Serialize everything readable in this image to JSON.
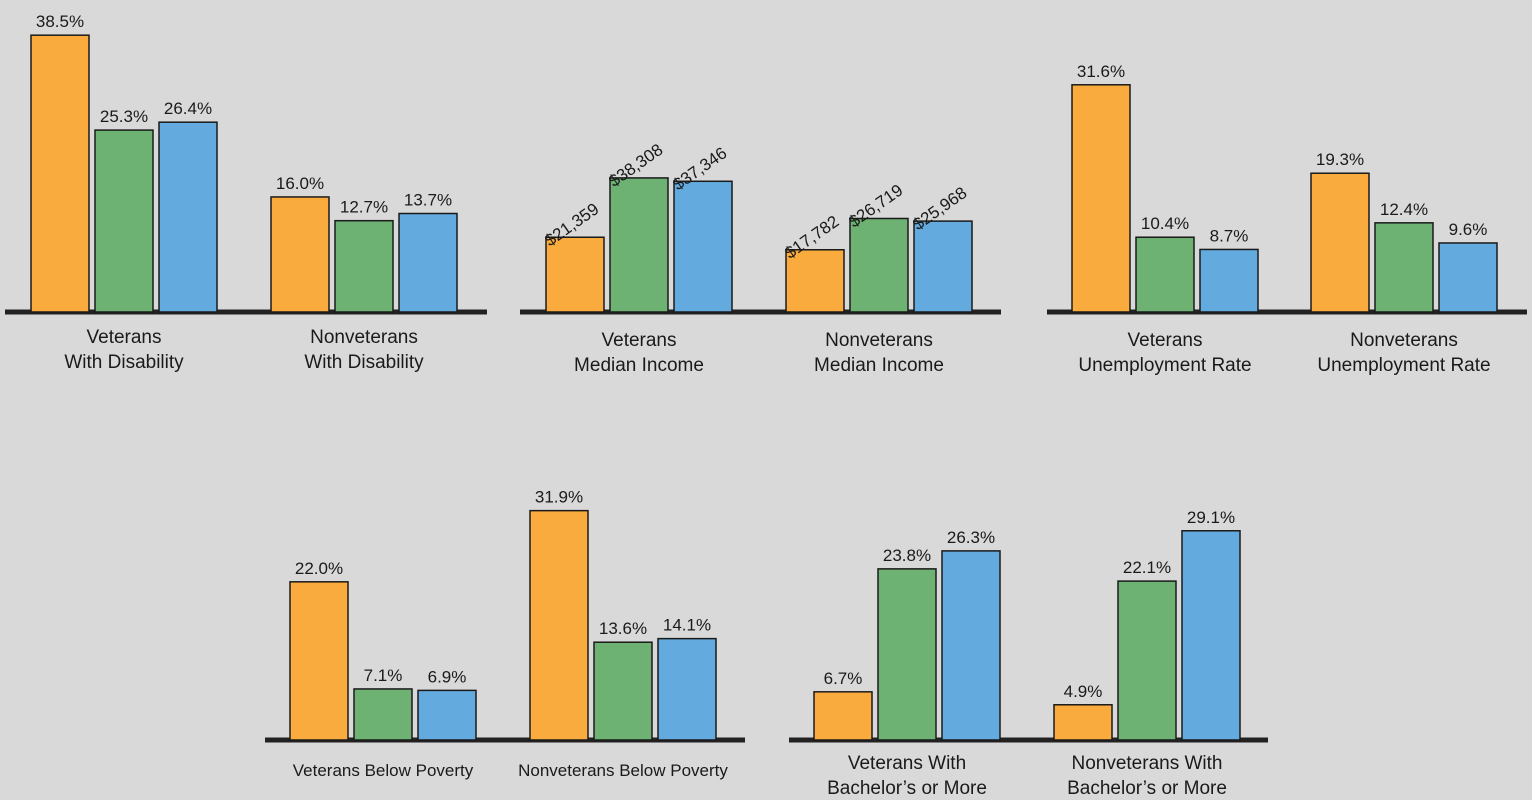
{
  "colors": {
    "series_1": "#f9ac3d",
    "series_2": "#6db273",
    "series_3": "#63abdf",
    "background": "#d9d9d9",
    "axis": "#222222"
  },
  "chart_data": [
    {
      "type": "bar",
      "categories": [
        "Veterans\nWith Disability",
        "Nonveterans\nWith Disability"
      ],
      "series": [
        {
          "values": [
            38.5,
            16.0
          ],
          "labels": [
            "38.5%",
            "16.0%"
          ]
        },
        {
          "values": [
            25.3,
            12.7
          ],
          "labels": [
            "25.3%",
            "12.7%"
          ]
        },
        {
          "values": [
            26.4,
            13.7
          ],
          "labels": [
            "26.4%",
            "13.7%"
          ]
        }
      ]
    },
    {
      "type": "bar",
      "categories": [
        "Veterans\nMedian Income",
        "Nonveterans\nMedian Income"
      ],
      "series": [
        {
          "values": [
            21359,
            17782
          ],
          "labels": [
            "$21,359",
            "$17,782"
          ]
        },
        {
          "values": [
            38308,
            26719
          ],
          "labels": [
            "$38,308",
            "$26,719"
          ]
        },
        {
          "values": [
            37346,
            25968
          ],
          "labels": [
            "$37,346",
            "$25,968"
          ]
        }
      ]
    },
    {
      "type": "bar",
      "categories": [
        "Veterans\nUnemployment Rate",
        "Nonveterans\nUnemployment Rate"
      ],
      "series": [
        {
          "values": [
            31.6,
            19.3
          ],
          "labels": [
            "31.6%",
            "19.3%"
          ]
        },
        {
          "values": [
            10.4,
            12.4
          ],
          "labels": [
            "10.4%",
            "12.4%"
          ]
        },
        {
          "values": [
            8.7,
            9.6
          ],
          "labels": [
            "8.7%",
            "9.6%"
          ]
        }
      ]
    },
    {
      "type": "bar",
      "categories": [
        "Veterans Below Poverty",
        "Nonveterans Below Poverty"
      ],
      "series": [
        {
          "values": [
            22.0,
            31.9
          ],
          "labels": [
            "22.0%",
            "31.9%"
          ]
        },
        {
          "values": [
            7.1,
            13.6
          ],
          "labels": [
            "7.1%",
            "13.6%"
          ]
        },
        {
          "values": [
            6.9,
            14.1
          ],
          "labels": [
            "6.9%",
            "14.1%"
          ]
        }
      ]
    },
    {
      "type": "bar",
      "categories": [
        "Veterans With\nBachelor’s or More",
        "Nonveterans With\nBachelor’s or More"
      ],
      "series": [
        {
          "values": [
            6.7,
            4.9
          ],
          "labels": [
            "6.7%",
            "4.9%"
          ]
        },
        {
          "values": [
            23.8,
            22.1
          ],
          "labels": [
            "23.8%",
            "22.1%"
          ]
        },
        {
          "values": [
            26.3,
            29.1
          ],
          "labels": [
            "26.3%",
            "29.1%"
          ]
        }
      ]
    }
  ]
}
